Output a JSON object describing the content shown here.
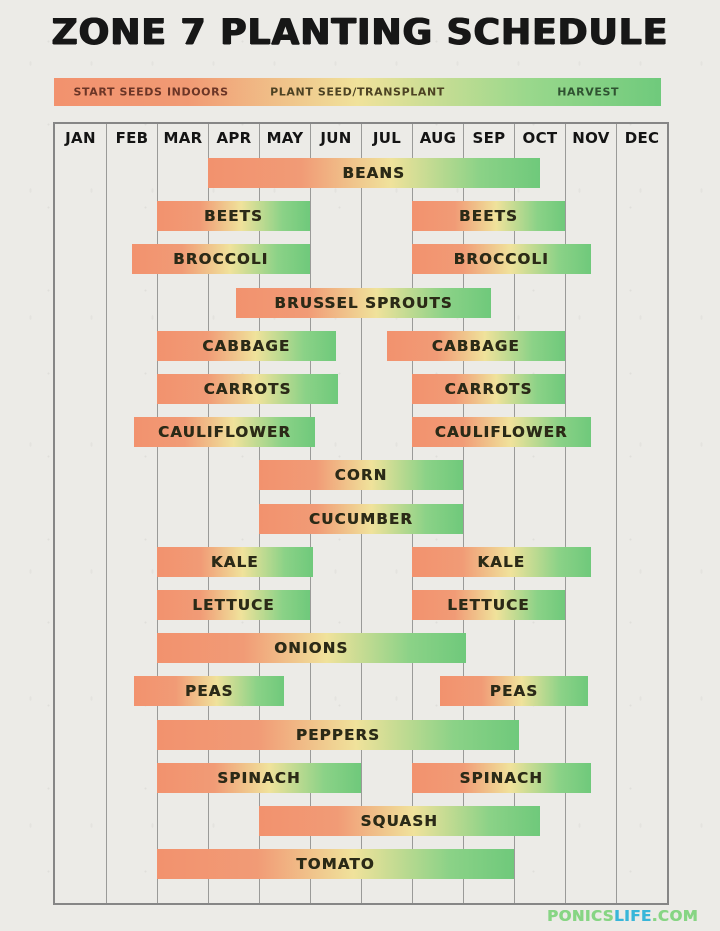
{
  "page": {
    "title": "ZONE 7 PLANTING SCHEDULE"
  },
  "legend": {
    "items": [
      "START SEEDS INDOORS",
      "PLANT SEED/TRANSPLANT",
      "HARVEST"
    ],
    "gradient_colors": [
      "#F2926E",
      "#F0E29B",
      "#6FCA7C"
    ]
  },
  "watermark": {
    "part1": "PONICS",
    "part2": "LIFE",
    "part3": ".COM",
    "green": "#87d584",
    "blue": "#38b6d9"
  },
  "chart_data": {
    "type": "bar",
    "subtype": "gantt-planting-timeline",
    "title": "ZONE 7 PLANTING SCHEDULE",
    "xlabel": "Month",
    "ylabel": "Crop",
    "x_range_months": [
      0,
      12
    ],
    "grid": true,
    "categories": [
      "JAN",
      "FEB",
      "MAR",
      "APR",
      "MAY",
      "JUN",
      "JUL",
      "AUG",
      "SEP",
      "OCT",
      "NOV",
      "DEC"
    ],
    "bar_gradient": {
      "start_color": "#F2926E",
      "mid_color": "#F0E29B",
      "end_color": "#6FC97B",
      "meaning_start": "START SEEDS INDOORS",
      "meaning_mid": "PLANT SEED/TRANSPLANT",
      "meaning_end": "HARVEST"
    },
    "rows": [
      {
        "segments": [
          {
            "label": "BEANS",
            "start": 3.0,
            "end": 9.5
          }
        ]
      },
      {
        "segments": [
          {
            "label": "BEETS",
            "start": 2.0,
            "end": 5.0
          },
          {
            "label": "BEETS",
            "start": 7.0,
            "end": 10.0
          }
        ]
      },
      {
        "segments": [
          {
            "label": "BROCCOLI",
            "start": 1.5,
            "end": 5.0
          },
          {
            "label": "BROCCOLI",
            "start": 7.0,
            "end": 10.5
          }
        ]
      },
      {
        "segments": [
          {
            "label": "BRUSSEL SPROUTS",
            "start": 3.55,
            "end": 8.55
          }
        ]
      },
      {
        "segments": [
          {
            "label": "CABBAGE",
            "start": 2.0,
            "end": 5.5
          },
          {
            "label": "CABBAGE",
            "start": 6.5,
            "end": 10.0
          }
        ]
      },
      {
        "segments": [
          {
            "label": "CARROTS",
            "start": 2.0,
            "end": 5.55
          },
          {
            "label": "CARROTS",
            "start": 7.0,
            "end": 10.0
          }
        ]
      },
      {
        "segments": [
          {
            "label": "CAULIFLOWER",
            "start": 1.55,
            "end": 5.1
          },
          {
            "label": "CAULIFLOWER",
            "start": 7.0,
            "end": 10.5
          }
        ]
      },
      {
        "segments": [
          {
            "label": "CORN",
            "start": 4.0,
            "end": 8.0
          }
        ]
      },
      {
        "segments": [
          {
            "label": "CUCUMBER",
            "start": 4.0,
            "end": 8.0
          }
        ]
      },
      {
        "segments": [
          {
            "label": "KALE",
            "start": 2.0,
            "end": 5.05
          },
          {
            "label": "KALE",
            "start": 7.0,
            "end": 10.5
          }
        ]
      },
      {
        "segments": [
          {
            "label": "LETTUCE",
            "start": 2.0,
            "end": 5.0
          },
          {
            "label": "LETTUCE",
            "start": 7.0,
            "end": 10.0
          }
        ]
      },
      {
        "segments": [
          {
            "label": "ONIONS",
            "start": 2.0,
            "end": 8.05
          }
        ]
      },
      {
        "segments": [
          {
            "label": "PEAS",
            "start": 1.55,
            "end": 4.5
          },
          {
            "label": "PEAS",
            "start": 7.55,
            "end": 10.45
          }
        ]
      },
      {
        "segments": [
          {
            "label": "PEPPERS",
            "start": 2.0,
            "end": 9.1
          }
        ]
      },
      {
        "segments": [
          {
            "label": "SPINACH",
            "start": 2.0,
            "end": 6.0
          },
          {
            "label": "SPINACH",
            "start": 7.0,
            "end": 10.5
          }
        ]
      },
      {
        "segments": [
          {
            "label": "SQUASH",
            "start": 4.0,
            "end": 9.5
          }
        ]
      },
      {
        "segments": [
          {
            "label": "TOMATO",
            "start": 2.0,
            "end": 9.0
          }
        ]
      }
    ]
  }
}
